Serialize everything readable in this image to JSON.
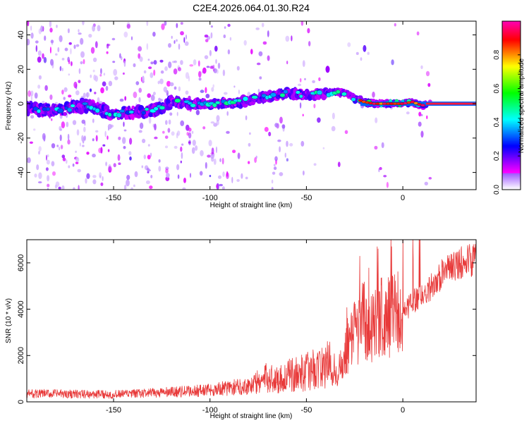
{
  "title": "C2E4.2026.064.01.30.R24",
  "chart_data": [
    {
      "type": "heatmap",
      "xlabel": "Height of straight line (km)",
      "ylabel": "Frequency (Hz)",
      "xlim": [
        -195,
        38
      ],
      "ylim": [
        -50,
        48
      ],
      "xticks": [
        -150,
        -100,
        -50,
        0
      ],
      "yticks": [
        -40,
        -20,
        0,
        20,
        40
      ],
      "colorbar": {
        "label": "Normalized spectral amplitude",
        "range": [
          0,
          1
        ],
        "ticks": [
          0.0,
          0.2,
          0.4,
          0.6,
          0.8
        ]
      },
      "ridge": {
        "x": [
          -195,
          -180,
          -165,
          -150,
          -140,
          -130,
          -120,
          -110,
          -100,
          -90,
          -80,
          -70,
          -60,
          -50,
          -40,
          -35,
          -30,
          -25,
          -20,
          -15,
          -10,
          -5,
          0,
          5,
          10,
          15,
          20,
          38
        ],
        "freq": [
          -3,
          -4,
          -1,
          -6,
          -5,
          -4,
          1,
          0,
          0,
          0,
          2,
          4,
          6,
          5,
          6,
          7,
          6,
          3,
          1,
          0,
          0,
          0,
          0,
          1,
          -1,
          0,
          0,
          0
        ]
      }
    },
    {
      "type": "line",
      "xlabel": "Height of straight line (km)",
      "ylabel": "SNR (10 * v/v)",
      "xlim": [
        -195,
        38
      ],
      "ylim": [
        0,
        7000
      ],
      "xticks": [
        -150,
        -100,
        -50,
        0
      ],
      "yticks": [
        0,
        2000,
        4000,
        6000
      ],
      "series": [
        {
          "name": "SNR",
          "color": "#e83a3a",
          "x": [
            -195,
            -180,
            -165,
            -150,
            -140,
            -130,
            -120,
            -110,
            -100,
            -90,
            -80,
            -75,
            -70,
            -65,
            -60,
            -55,
            -50,
            -45,
            -40,
            -38,
            -35,
            -30,
            -25,
            -20,
            -18,
            -15,
            -10,
            -5,
            0,
            5,
            10,
            15,
            20,
            25,
            30,
            38
          ],
          "y": [
            350,
            350,
            330,
            320,
            350,
            380,
            420,
            460,
            520,
            600,
            700,
            850,
            1050,
            950,
            1100,
            1200,
            1300,
            1450,
            1500,
            1700,
            1000,
            2200,
            3000,
            3600,
            3000,
            3400,
            3800,
            3700,
            3800,
            4300,
            4600,
            5000,
            5500,
            5800,
            6000,
            6200
          ]
        }
      ]
    }
  ]
}
